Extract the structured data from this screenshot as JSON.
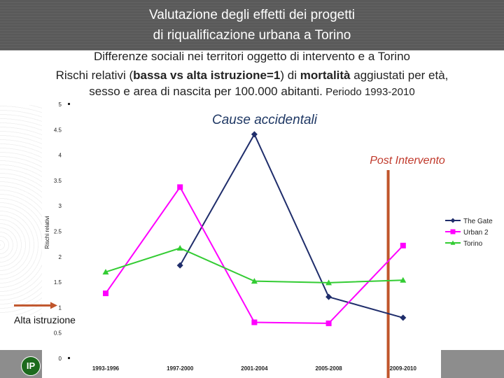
{
  "header": {
    "title_line1": "Valutazione degli effetti dei progetti",
    "title_line2": "di riqualificazione urbana a Torino",
    "subtitle_line1": "Differenze sociali nei territori oggetto di intervento e a Torino",
    "subtitle_line2_a": "Rischi relativi (",
    "subtitle_line2_b": "bassa vs alta istruzione=1",
    "subtitle_line2_c": ") di ",
    "subtitle_line2_d": "mortalità",
    "subtitle_line2_e": " aggiustati per età,",
    "subtitle_line3_a": "sesso e area di nascita per 100.000 abitanti.",
    "subtitle_line3_b": " Periodo 1993-2010"
  },
  "logo": {
    "text": "IP"
  },
  "chart_data": {
    "type": "line",
    "title": "Cause accidentali",
    "ylabel": "Rischi relativi",
    "xlabel": "",
    "categories": [
      "1993-1996",
      "1997-2000",
      "2001-2004",
      "2005-2008",
      "2009-2010"
    ],
    "ylim": [
      0,
      5
    ],
    "yticks": [
      "0",
      "0.5",
      "1",
      "1.5",
      "2",
      "2.5",
      "3",
      "3.5",
      "4",
      "4.5",
      "5"
    ],
    "grid": false,
    "legend": "right",
    "series": [
      {
        "name": "The Gate",
        "color": "#1f2d6b",
        "marker": "diamond",
        "values": [
          null,
          1.83,
          4.41,
          1.21,
          0.8
        ]
      },
      {
        "name": "Urban 2",
        "color": "#ff00ff",
        "marker": "square",
        "values": [
          1.28,
          3.37,
          0.71,
          0.69,
          2.22
        ]
      },
      {
        "name": "Torino",
        "color": "#33cc33",
        "marker": "triangle",
        "values": [
          1.7,
          2.17,
          1.52,
          1.49,
          1.54
        ]
      }
    ],
    "annotations": {
      "post_intervento": {
        "text": "Post Intervento",
        "color": "#c0392b",
        "after_category": "2005-2008"
      },
      "reference": {
        "text": "Alta istruzione",
        "value": 1,
        "color": "#c0392b"
      }
    }
  }
}
